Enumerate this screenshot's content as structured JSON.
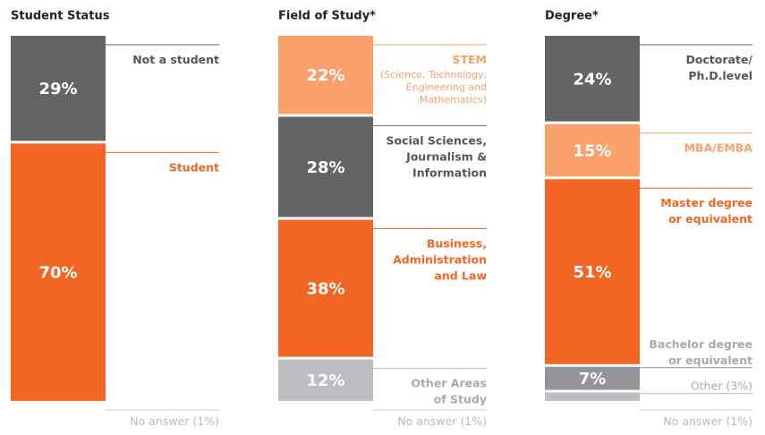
{
  "chart_data": [
    {
      "type": "stacked_bar",
      "title": "Student Status",
      "series": [
        {
          "name": "Not a student",
          "color": "#636466",
          "values": [
            29
          ],
          "value_labels": [
            "29%"
          ]
        },
        {
          "name": "Student",
          "color": "#f26522",
          "values": [
            70
          ],
          "value_labels": [
            "70%"
          ]
        },
        {
          "name": "No answer (1%)",
          "color": "#eeeeef",
          "values": [
            1
          ],
          "value_labels": [
            null
          ]
        }
      ]
    },
    {
      "type": "stacked_bar",
      "title": "Field of Study*",
      "series": [
        {
          "name": "STEM",
          "note": "(Science, Technology,\nEngineering and\nMathematics)",
          "color": "#f9a06b",
          "values": [
            22
          ],
          "value_labels": [
            "22%"
          ]
        },
        {
          "name": "Social Sciences,\nJournalism &\nInformation",
          "color": "#636466",
          "values": [
            28
          ],
          "value_labels": [
            "28%"
          ]
        },
        {
          "name": "Business,\nAdministration\nand Law",
          "color": "#f26522",
          "values": [
            38
          ],
          "value_labels": [
            "38%"
          ]
        },
        {
          "name": "Other Areas\nof Study",
          "color": "#bcbdc0",
          "values": [
            12
          ],
          "value_labels": [
            "12%"
          ]
        },
        {
          "name": "No answer (1%)",
          "color": "#eeeeef",
          "values": [
            1
          ],
          "value_labels": [
            null
          ]
        }
      ]
    },
    {
      "type": "stacked_bar",
      "title": "Degree*",
      "series": [
        {
          "name": "Doctorate/\nPh.D.level",
          "color": "#636466",
          "values": [
            24
          ],
          "value_labels": [
            "24%"
          ]
        },
        {
          "name": "MBA/EMBA",
          "color": "#f9a06b",
          "values": [
            15
          ],
          "value_labels": [
            "15%"
          ]
        },
        {
          "name": "Master degree\nor equivalent",
          "color": "#f26522",
          "values": [
            51
          ],
          "value_labels": [
            "51%"
          ]
        },
        {
          "name": "Bachelor degree\nor equivalent",
          "color": "#939598",
          "values": [
            7
          ],
          "value_labels": [
            "7%"
          ]
        },
        {
          "name": "Other (3%)",
          "color": "#bcbdc0",
          "values": [
            3
          ],
          "value_labels": [
            null
          ]
        },
        {
          "name": "No answer (1%)",
          "color": "#eeeeef",
          "values": [
            1
          ],
          "value_labels": [
            null
          ]
        }
      ]
    }
  ]
}
